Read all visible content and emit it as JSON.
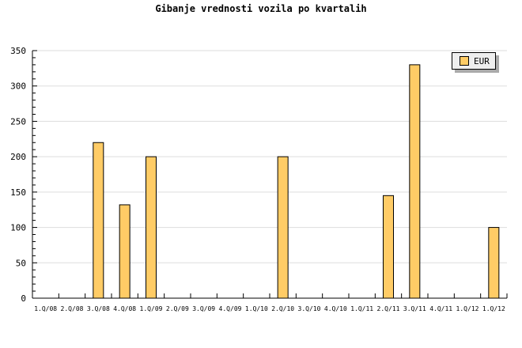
{
  "chart_data": {
    "type": "bar",
    "title": "Gibanje vrednosti vozila po kvartalih",
    "categories": [
      "1.Q/08",
      "2.Q/08",
      "3.Q/08",
      "4.Q/08",
      "1.Q/09",
      "2.Q/09",
      "3.Q/09",
      "4.Q/09",
      "1.Q/10",
      "2.Q/10",
      "3.Q/10",
      "4.Q/10",
      "1.Q/11",
      "2.Q/11",
      "3.Q/11",
      "4.Q/11",
      "1.Q/12",
      "1.Q/12"
    ],
    "series": [
      {
        "name": "EUR",
        "values": [
          0,
          0,
          220,
          132,
          200,
          0,
          0,
          0,
          0,
          200,
          0,
          0,
          0,
          145,
          330,
          0,
          0,
          100
        ],
        "color": "#ffcc66"
      }
    ],
    "ylim": [
      0,
      350
    ],
    "yticks": [
      0,
      50,
      100,
      150,
      200,
      250,
      300,
      350
    ],
    "grid": true,
    "legend": "top-right"
  }
}
